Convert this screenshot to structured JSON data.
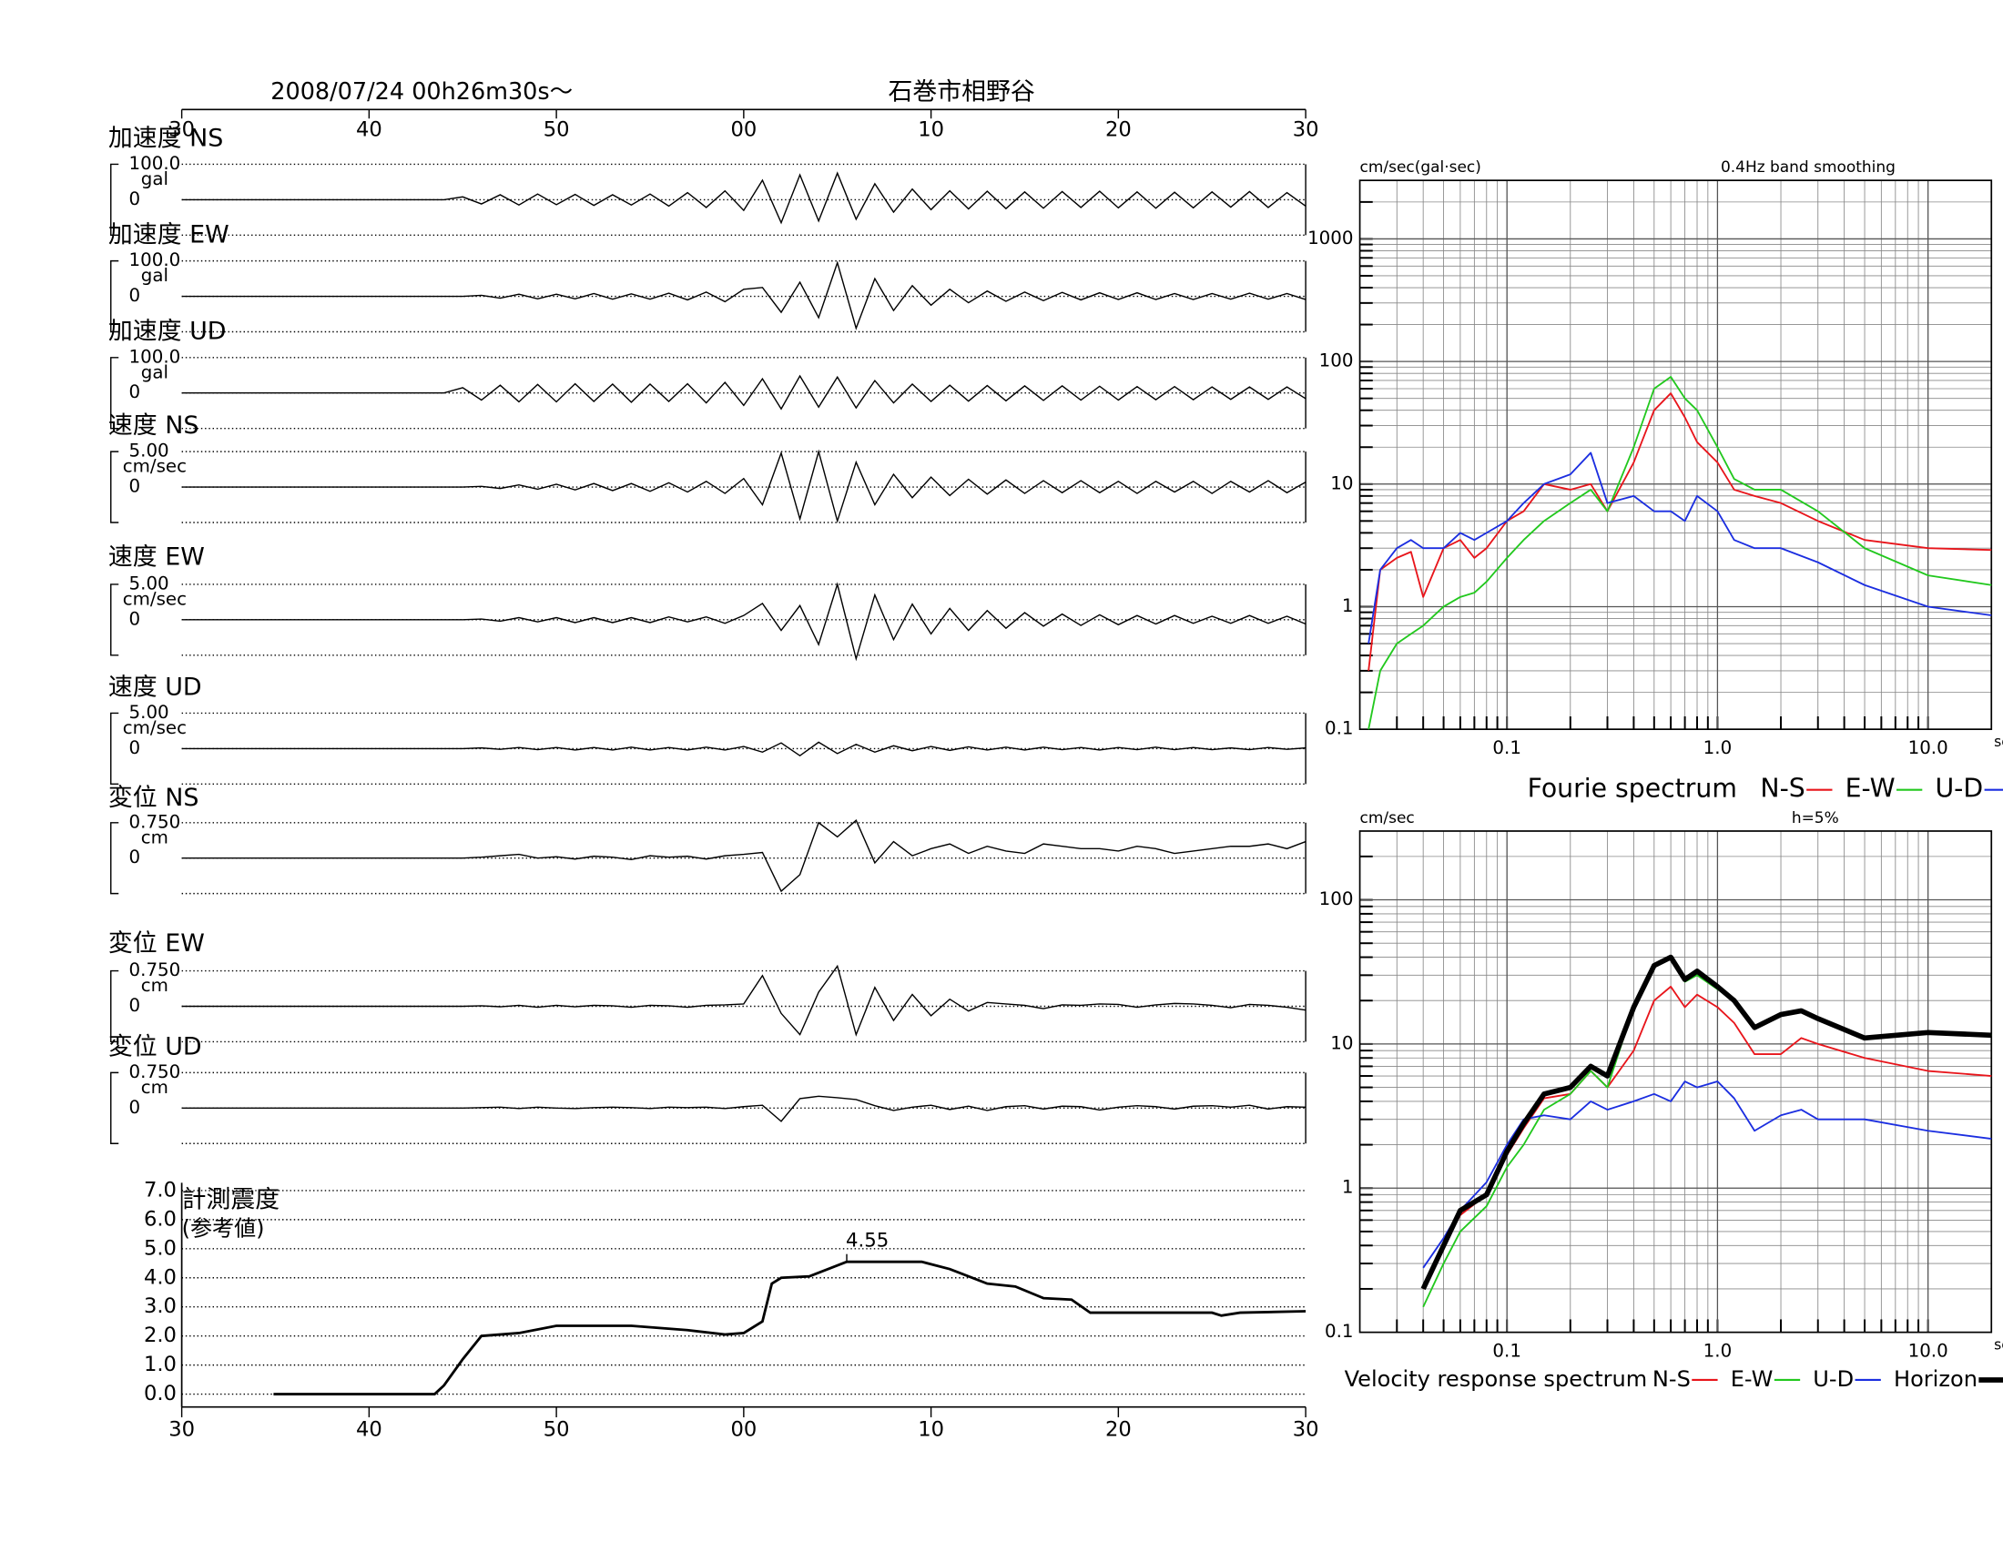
{
  "header": {
    "date": "2008/07/24  00h26m30s〜",
    "station": "石巻市相野谷"
  },
  "chart_data": [
    {
      "type": "waveform",
      "xlim": [
        0,
        60
      ],
      "xticks": [
        {
          "value": 0,
          "label": "30"
        },
        {
          "value": 10,
          "label": "40"
        },
        {
          "value": 20,
          "label": "50"
        },
        {
          "value": 30,
          "label": "00"
        },
        {
          "value": 40,
          "label": "10"
        },
        {
          "value": 50,
          "label": "20"
        },
        {
          "value": 60,
          "label": "30"
        }
      ],
      "x": [
        0,
        14,
        15,
        16,
        17,
        18,
        19,
        20,
        21,
        22,
        23,
        24,
        25,
        26,
        27,
        28,
        29,
        30,
        31,
        32,
        33,
        34,
        35,
        36,
        37,
        38,
        39,
        40,
        41,
        42,
        43,
        44,
        45,
        46,
        47,
        48,
        49,
        50,
        51,
        52,
        53,
        54,
        55,
        56,
        57,
        58,
        59,
        60
      ],
      "traces": [
        {
          "name": "加速度 NS",
          "unit": "gal",
          "ylim": [
            -100,
            100
          ],
          "yticks": [
            {
              "value": 100,
              "label": "100.0"
            },
            0
          ],
          "values": [
            0,
            0,
            8,
            -12,
            14,
            -15,
            16,
            -14,
            15,
            -16,
            14,
            -15,
            16,
            -18,
            20,
            -22,
            25,
            -30,
            55,
            -65,
            70,
            -60,
            75,
            -55,
            45,
            -35,
            30,
            -28,
            25,
            -26,
            24,
            -25,
            22,
            -24,
            23,
            -22,
            24,
            -23,
            22,
            -24,
            21,
            -23,
            22,
            -21,
            23,
            -22,
            20,
            -18
          ]
        },
        {
          "name": "加速度 EW",
          "unit": "gal",
          "ylim": [
            -100,
            100
          ],
          "yticks": [
            {
              "value": 100,
              "label": "100.0"
            },
            0
          ],
          "values": [
            0,
            0,
            0,
            3,
            -5,
            6,
            -7,
            6,
            -7,
            8,
            -8,
            7,
            -8,
            9,
            -10,
            12,
            -15,
            20,
            25,
            -45,
            40,
            -60,
            95,
            -90,
            50,
            -40,
            30,
            -25,
            20,
            -18,
            15,
            -14,
            12,
            -12,
            11,
            -10,
            10,
            -9,
            10,
            -9,
            8,
            -9,
            8,
            -8,
            9,
            -8,
            8,
            -9
          ]
        },
        {
          "name": "加速度 UD",
          "unit": "gal",
          "ylim": [
            -100,
            100
          ],
          "yticks": [
            {
              "value": 100,
              "label": "100.0"
            },
            0
          ],
          "values": [
            0,
            0,
            15,
            -20,
            22,
            -25,
            24,
            -25,
            26,
            -24,
            25,
            -26,
            25,
            -24,
            26,
            -28,
            30,
            -35,
            40,
            -45,
            48,
            -40,
            45,
            -42,
            35,
            -28,
            25,
            -24,
            22,
            -23,
            21,
            -22,
            20,
            -21,
            20,
            -20,
            19,
            -20,
            18,
            -19,
            18,
            -19,
            17,
            -18,
            17,
            -18,
            17,
            -16
          ]
        },
        {
          "name": "速度 NS",
          "unit": "cm/sec",
          "ylim": [
            -5,
            5
          ],
          "yticks": [
            {
              "value": 5,
              "label": "5.00"
            },
            0
          ],
          "values": [
            0,
            0,
            0,
            0.1,
            -0.2,
            0.3,
            -0.3,
            0.4,
            -0.4,
            0.5,
            -0.5,
            0.5,
            -0.6,
            0.6,
            -0.7,
            0.8,
            -0.9,
            1.2,
            -2.5,
            4.8,
            -4.5,
            5,
            -4.8,
            3.5,
            -2.5,
            1.8,
            -1.5,
            1.4,
            -1.2,
            1.1,
            -1,
            1,
            -0.9,
            0.9,
            -0.8,
            0.9,
            -0.8,
            0.8,
            -0.9,
            0.8,
            -0.7,
            0.8,
            -0.9,
            0.8,
            -0.7,
            0.9,
            -0.8,
            0.7
          ]
        },
        {
          "name": "速度 EW",
          "unit": "cm/sec",
          "ylim": [
            -5,
            5
          ],
          "yticks": [
            {
              "value": 5,
              "label": "5.00"
            },
            0
          ],
          "values": [
            0,
            0,
            0,
            0.1,
            -0.2,
            0.3,
            -0.3,
            0.3,
            -0.4,
            0.3,
            -0.4,
            0.3,
            -0.4,
            0.4,
            -0.3,
            0.4,
            -0.5,
            0.6,
            2.3,
            -1.5,
            2,
            -3.5,
            5,
            -5.5,
            3.5,
            -2.8,
            2.2,
            -2,
            1.6,
            -1.5,
            1.3,
            -1.2,
            1,
            -0.9,
            0.8,
            -0.8,
            0.7,
            -0.7,
            0.6,
            -0.6,
            0.6,
            -0.5,
            0.5,
            -0.5,
            0.6,
            -0.5,
            0.5,
            -0.6
          ]
        },
        {
          "name": "速度 UD",
          "unit": "cm/sec",
          "ylim": [
            -5,
            5
          ],
          "yticks": [
            {
              "value": 5,
              "label": "5.00"
            },
            0
          ],
          "values": [
            0,
            0,
            0,
            0.1,
            -0.1,
            0.15,
            -0.15,
            0.15,
            -0.2,
            0.15,
            -0.2,
            0.2,
            -0.2,
            0.15,
            -0.2,
            0.2,
            -0.2,
            0.3,
            -0.5,
            0.8,
            -1,
            0.9,
            -0.7,
            0.6,
            -0.5,
            0.4,
            -0.3,
            0.3,
            -0.25,
            0.25,
            -0.2,
            0.2,
            -0.2,
            0.2,
            -0.15,
            0.15,
            -0.2,
            0.15,
            -0.15,
            0.2,
            -0.15,
            0.15,
            -0.15,
            0.1,
            -0.15,
            0.15,
            -0.1,
            0.1
          ]
        },
        {
          "name": "変位 NS",
          "unit": "cm",
          "ylim": [
            -0.75,
            0.75
          ],
          "yticks": [
            {
              "value": 0.75,
              "label": "0.750"
            },
            0
          ],
          "values": [
            0,
            0,
            0,
            0.02,
            0.05,
            0.08,
            0,
            0.03,
            -0.02,
            0.04,
            0.02,
            -0.03,
            0.05,
            0.02,
            0.04,
            -0.02,
            0.05,
            0.08,
            0.12,
            -0.7,
            -0.35,
            0.75,
            0.45,
            0.8,
            -0.1,
            0.35,
            0.05,
            0.2,
            0.3,
            0.1,
            0.25,
            0.15,
            0.1,
            0.3,
            0.25,
            0.2,
            0.2,
            0.15,
            0.25,
            0.2,
            0.1,
            0.15,
            0.2,
            0.25,
            0.25,
            0.3,
            0.2,
            0.35
          ]
        },
        {
          "name": "変位 EW",
          "unit": "cm",
          "ylim": [
            -0.75,
            0.75
          ],
          "yticks": [
            {
              "value": 0.75,
              "label": "0.750"
            },
            0
          ],
          "values": [
            0,
            0,
            0,
            0.01,
            -0.01,
            0.02,
            -0.02,
            0.02,
            -0.01,
            0.02,
            0.01,
            -0.02,
            0.02,
            0.01,
            -0.02,
            0.02,
            0.03,
            0.05,
            0.65,
            -0.15,
            -0.6,
            0.3,
            0.85,
            -0.6,
            0.4,
            -0.3,
            0.25,
            -0.2,
            0.15,
            -0.1,
            0.08,
            0.05,
            0.02,
            -0.05,
            0.03,
            0.02,
            0.05,
            0.04,
            -0.02,
            0.03,
            0.06,
            0.05,
            0.02,
            -0.03,
            0.04,
            0.02,
            -0.02,
            -0.08
          ]
        },
        {
          "name": "変位 UD",
          "unit": "cm",
          "ylim": [
            -0.75,
            0.75
          ],
          "yticks": [
            {
              "value": 0.75,
              "label": "0.750"
            },
            0
          ],
          "values": [
            0,
            0,
            0,
            0.01,
            0.02,
            -0.01,
            0.02,
            0,
            -0.01,
            0.01,
            0.02,
            0.01,
            -0.01,
            0.02,
            0.01,
            0.02,
            -0.01,
            0.03,
            0.06,
            -0.28,
            0.2,
            0.25,
            0.22,
            0.18,
            0.05,
            -0.05,
            0.02,
            0.06,
            -0.03,
            0.04,
            -0.05,
            0.03,
            0.05,
            -0.02,
            0.04,
            0.03,
            -0.04,
            0.02,
            0.05,
            0.03,
            -0.02,
            0.04,
            0.05,
            0.02,
            0.06,
            -0.02,
            0.03,
            0.02
          ]
        }
      ]
    },
    {
      "type": "line",
      "title": "計測震度",
      "subtitle": "(参考値)",
      "xlim": [
        0,
        60
      ],
      "xticks": [
        {
          "value": 0,
          "label": "30"
        },
        {
          "value": 10,
          "label": "40"
        },
        {
          "value": 20,
          "label": "50"
        },
        {
          "value": 30,
          "label": "00"
        },
        {
          "value": 40,
          "label": "10"
        },
        {
          "value": 50,
          "label": "20"
        },
        {
          "value": 60,
          "label": "30"
        }
      ],
      "ylim": [
        0,
        7
      ],
      "yticks": [
        {
          "value": 0,
          "label": "0.0"
        },
        {
          "value": 1,
          "label": "1.0"
        },
        {
          "value": 2,
          "label": "2.0"
        },
        {
          "value": 3,
          "label": "3.0"
        },
        {
          "value": 4,
          "label": "4.0"
        },
        {
          "value": 5,
          "label": "5.0"
        },
        {
          "value": 6,
          "label": "6.0"
        },
        {
          "value": 7,
          "label": "7.0"
        }
      ],
      "grid": true,
      "x": [
        4.9,
        13.5,
        14,
        15,
        16,
        18,
        20,
        24,
        27,
        29,
        30,
        31,
        31.5,
        32,
        33.5,
        34.5,
        35.5,
        39.5,
        41,
        43,
        44.5,
        46,
        47.5,
        48.5,
        55,
        55.5,
        56.5,
        60
      ],
      "values": [
        0,
        0,
        0.3,
        1.2,
        2.0,
        2.1,
        2.35,
        2.35,
        2.2,
        2.05,
        2.1,
        2.5,
        3.8,
        4.0,
        4.05,
        4.3,
        4.55,
        4.55,
        4.3,
        3.8,
        3.7,
        3.3,
        3.25,
        2.8,
        2.8,
        2.7,
        2.8,
        2.85
      ],
      "annotations": [
        {
          "x": 35.5,
          "y": 4.55,
          "text": "4.55"
        }
      ]
    },
    {
      "type": "line",
      "xscale": "log",
      "yscale": "log",
      "grid": true,
      "ylabel": "cm/sec(gal·sec)",
      "annotation": "0.4Hz band smoothing",
      "xlabel": "sec",
      "legend_title": "Fourie spectrum",
      "xlim": [
        0.02,
        20
      ],
      "ylim": [
        0.1,
        3000
      ],
      "xticks": [
        0.1,
        {
          "value": 1,
          "label": "1.0"
        },
        {
          "value": 10,
          "label": "10.0"
        }
      ],
      "yticks": [
        0.1,
        1,
        10,
        100,
        1000
      ],
      "x": [
        0.022,
        0.025,
        0.03,
        0.035,
        0.04,
        0.05,
        0.06,
        0.07,
        0.08,
        0.1,
        0.12,
        0.15,
        0.2,
        0.25,
        0.3,
        0.4,
        0.5,
        0.6,
        0.7,
        0.8,
        1.0,
        1.2,
        1.5,
        2,
        3,
        5,
        10,
        20
      ],
      "series": [
        {
          "name": "N-S",
          "color": "#e8151b",
          "values": [
            0.3,
            2,
            2.5,
            2.8,
            1.2,
            3,
            3.5,
            2.5,
            3,
            5,
            6,
            10,
            9,
            10,
            6,
            15,
            40,
            55,
            35,
            22,
            15,
            9,
            8,
            7,
            5,
            3.5,
            3,
            2.9
          ]
        },
        {
          "name": "E-W",
          "color": "#22c81e",
          "values": [
            0.1,
            0.3,
            0.5,
            0.6,
            0.7,
            1,
            1.2,
            1.3,
            1.6,
            2.5,
            3.5,
            5,
            7,
            9,
            6,
            20,
            60,
            75,
            50,
            40,
            20,
            11,
            9,
            9,
            6,
            3,
            1.8,
            1.5
          ]
        },
        {
          "name": "U-D",
          "color": "#1b2ee0",
          "values": [
            0.5,
            2,
            3,
            3.5,
            3,
            3,
            4,
            3.5,
            4,
            5,
            7,
            10,
            12,
            18,
            7,
            8,
            6,
            6,
            5,
            8,
            6,
            3.5,
            3,
            3,
            2.3,
            1.5,
            1,
            0.85
          ]
        }
      ]
    },
    {
      "type": "line",
      "xscale": "log",
      "yscale": "log",
      "grid": true,
      "ylabel": "cm/sec",
      "annotation": "h=5%",
      "xlabel": "sec",
      "legend_title": "Velocity response spectrum",
      "xlim": [
        0.02,
        20
      ],
      "ylim": [
        0.1,
        300
      ],
      "xticks": [
        0.1,
        {
          "value": 1,
          "label": "1.0"
        },
        {
          "value": 10,
          "label": "10.0"
        }
      ],
      "yticks": [
        0.1,
        1,
        10,
        100
      ],
      "x": [
        0.04,
        0.05,
        0.06,
        0.08,
        0.1,
        0.12,
        0.15,
        0.2,
        0.25,
        0.3,
        0.4,
        0.5,
        0.6,
        0.7,
        0.8,
        1.0,
        1.2,
        1.5,
        2,
        2.5,
        3,
        5,
        10,
        20
      ],
      "series": [
        {
          "name": "N-S",
          "color": "#e8151b",
          "values": [
            0.2,
            0.4,
            0.65,
            0.9,
            1.7,
            2.6,
            4.2,
            4.5,
            6.5,
            5,
            9,
            20,
            25,
            18,
            22,
            18,
            14,
            8.5,
            8.5,
            11,
            10,
            8,
            6.5,
            6
          ]
        },
        {
          "name": "E-W",
          "color": "#22c81e",
          "values": [
            0.15,
            0.3,
            0.5,
            0.75,
            1.4,
            2,
            3.5,
            4.5,
            6.5,
            5,
            18,
            35,
            40,
            27,
            30,
            24,
            20,
            13,
            16,
            17,
            15,
            11,
            12,
            11.5
          ]
        },
        {
          "name": "U-D",
          "color": "#1b2ee0",
          "values": [
            0.28,
            0.45,
            0.7,
            1.1,
            2,
            3,
            3.2,
            3,
            4,
            3.5,
            4,
            4.5,
            4,
            5.5,
            5,
            5.5,
            4.2,
            2.5,
            3.2,
            3.5,
            3,
            3,
            2.5,
            2.2
          ]
        },
        {
          "name": "Horizon",
          "color": "#000000",
          "line_width": 4,
          "values": [
            0.2,
            0.4,
            0.7,
            0.9,
            1.8,
            2.8,
            4.5,
            5,
            7,
            6,
            18,
            35,
            40,
            28,
            32,
            25,
            20,
            13,
            16,
            17,
            15,
            11,
            12,
            11.5
          ]
        }
      ]
    }
  ]
}
